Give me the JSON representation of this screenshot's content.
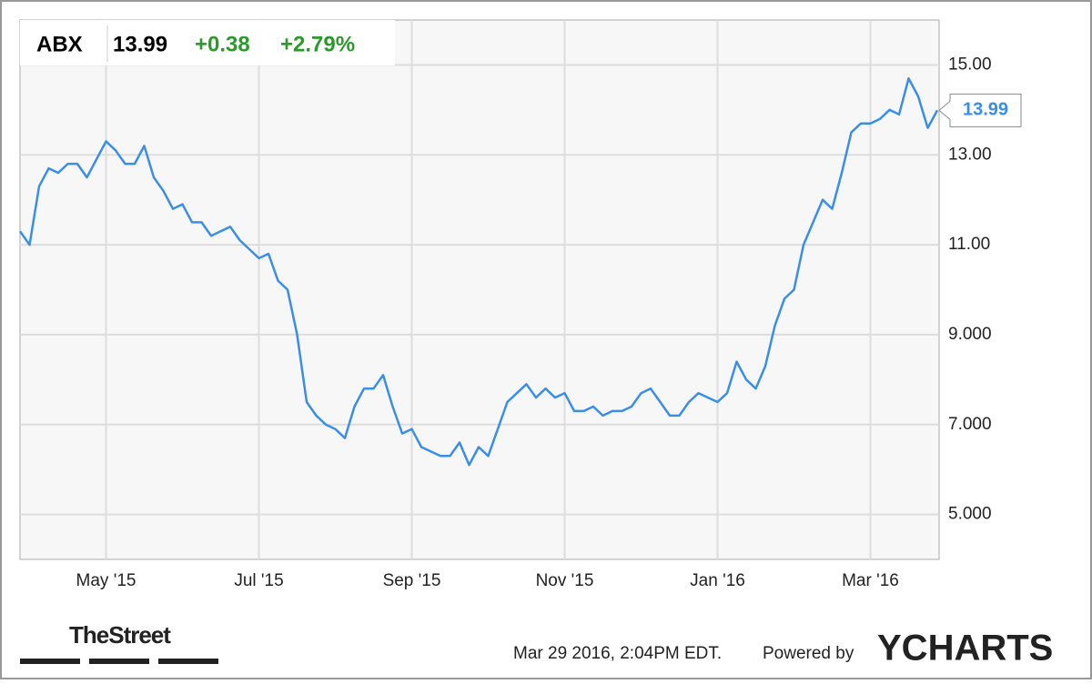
{
  "chart_data": {
    "type": "line",
    "ticker": "ABX",
    "price": 13.99,
    "change": "+0.38",
    "change_pct": "+2.79%",
    "categories": [
      null,
      null,
      null,
      null,
      null,
      null,
      null,
      null,
      null,
      "May '15",
      null,
      null,
      null,
      null,
      null,
      null,
      null,
      null,
      null,
      null,
      null,
      null,
      null,
      null,
      null,
      "Jul '15",
      null,
      null,
      null,
      null,
      null,
      null,
      null,
      null,
      null,
      null,
      null,
      null,
      null,
      null,
      null,
      "Sep '15",
      null,
      null,
      null,
      null,
      null,
      null,
      null,
      null,
      null,
      null,
      null,
      null,
      null,
      null,
      null,
      "Nov '15",
      null,
      null,
      null,
      null,
      null,
      null,
      null,
      null,
      null,
      null,
      null,
      null,
      null,
      null,
      null,
      "Jan '16",
      null,
      null,
      null,
      null,
      null,
      null,
      null,
      null,
      null,
      null,
      null,
      null,
      null,
      null,
      null,
      "Mar '16",
      null,
      null,
      null,
      null,
      null,
      null,
      null
    ],
    "series": [
      {
        "name": "ABX",
        "color": "#3a8ee6",
        "values": [
          11.3,
          11.0,
          12.3,
          12.7,
          12.6,
          12.8,
          12.8,
          12.5,
          12.9,
          13.3,
          13.1,
          12.8,
          12.8,
          13.2,
          12.5,
          12.2,
          11.8,
          11.9,
          11.5,
          11.5,
          11.2,
          11.3,
          11.4,
          11.1,
          10.9,
          10.7,
          10.8,
          10.2,
          10.0,
          9.0,
          7.5,
          7.2,
          7.0,
          6.9,
          6.7,
          7.4,
          7.8,
          7.8,
          8.1,
          7.4,
          6.8,
          6.9,
          6.5,
          6.4,
          6.3,
          6.3,
          6.6,
          6.1,
          6.5,
          6.3,
          6.9,
          7.5,
          7.7,
          7.9,
          7.6,
          7.8,
          7.6,
          7.7,
          7.3,
          7.3,
          7.4,
          7.2,
          7.3,
          7.3,
          7.4,
          7.7,
          7.8,
          7.5,
          7.2,
          7.2,
          7.5,
          7.7,
          7.6,
          7.5,
          7.7,
          8.4,
          8.0,
          7.8,
          8.3,
          9.2,
          9.8,
          10.0,
          11.0,
          11.5,
          12.0,
          11.8,
          12.6,
          13.5,
          13.7,
          13.7,
          13.8,
          14.0,
          13.9,
          14.7,
          14.3,
          13.6,
          13.99
        ]
      }
    ],
    "ylim": [
      4,
      16
    ],
    "yticks": [
      {
        "value": 5,
        "label": "5.000"
      },
      {
        "value": 7,
        "label": "7.000"
      },
      {
        "value": 9,
        "label": "9.000"
      },
      {
        "value": 11,
        "label": "11.00"
      },
      {
        "value": 13,
        "label": "13.00"
      },
      {
        "value": 15,
        "label": "15.00"
      }
    ],
    "grid": true,
    "timestamp": "Mar 29 2016, 2:04PM EDT.",
    "powered_by": "Powered by",
    "brand": "YCHARTS",
    "source": "TheStreet"
  }
}
